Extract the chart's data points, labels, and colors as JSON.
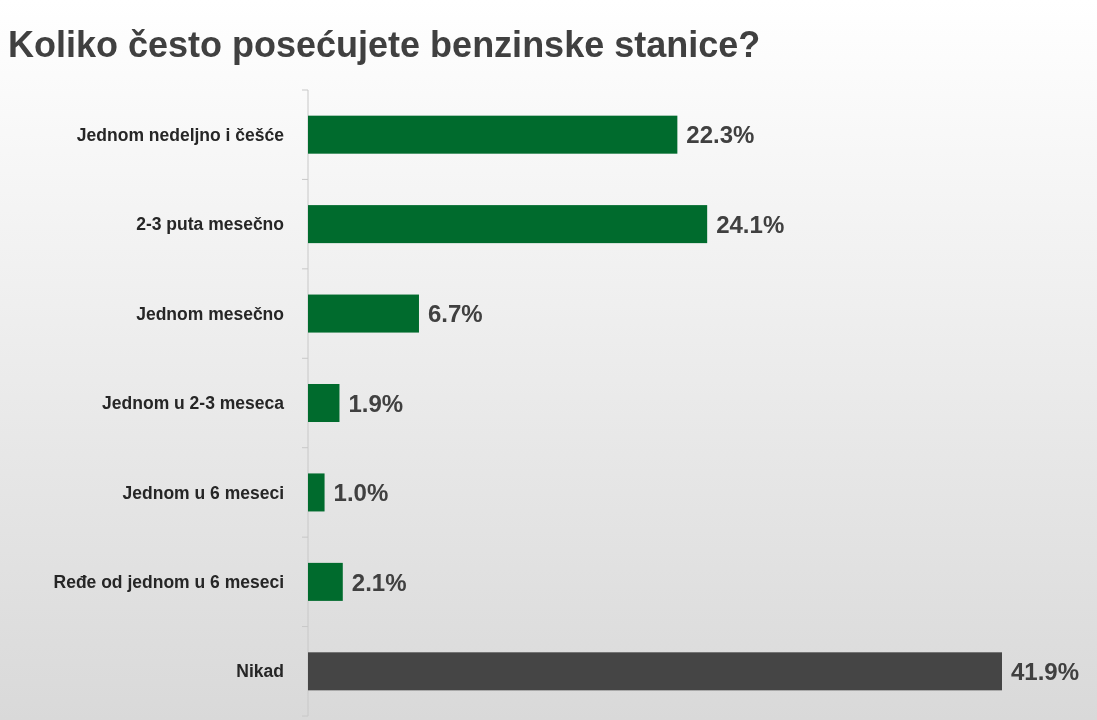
{
  "chart_data": {
    "type": "bar",
    "orientation": "horizontal",
    "title": "Koliko često posećujete benzinske stanice?",
    "categories": [
      "Jednom nedeljno i češće",
      "2-3 puta mesečno",
      "Jednom mesečno",
      "Jednom u 2-3 meseca",
      "Jednom u 6 meseci",
      "Ređe od jednom u 6 meseci",
      "Nikad"
    ],
    "values": [
      22.3,
      24.1,
      6.7,
      1.9,
      1.0,
      2.1,
      41.9
    ],
    "colors": [
      "#006b2d",
      "#006b2d",
      "#006b2d",
      "#006b2d",
      "#006b2d",
      "#006b2d",
      "#454545"
    ],
    "xlim": [
      0,
      41.9
    ],
    "data_labels": true,
    "value_labels": [
      "22.3%",
      "24.1%",
      "6.7%",
      "1.9%",
      "1.0%",
      "2.1%",
      "41.9%"
    ],
    "tick_labels": "y"
  }
}
